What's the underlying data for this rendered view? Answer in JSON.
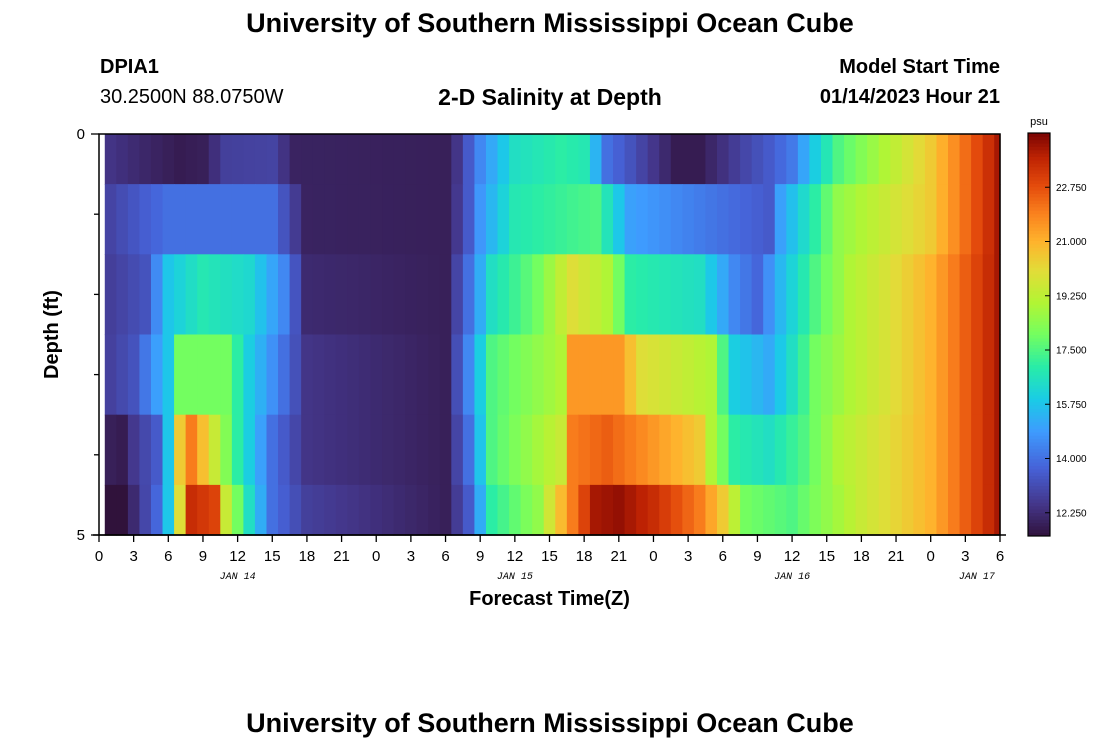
{
  "header": {
    "title": "University of Southern Mississippi Ocean Cube",
    "station_id": "DPIA1",
    "coords": "30.2500N  88.0750W",
    "plot_title": "2-D Salinity at Depth",
    "start_label": "Model Start Time",
    "start_value": "01/14/2023 Hour 21"
  },
  "footer": {
    "title": "University of Southern Mississippi Ocean Cube"
  },
  "chart_data": {
    "type": "heatmap",
    "title": "2-D Salinity at Depth",
    "xlabel": "Forecast Time(Z)",
    "ylabel": "Depth (ft)",
    "x_tick_labels": [
      "0",
      "3",
      "6",
      "9",
      "12",
      "15",
      "18",
      "21",
      "0",
      "3",
      "6",
      "9",
      "12",
      "15",
      "18",
      "21",
      "0",
      "3",
      "6",
      "9",
      "12",
      "15",
      "18",
      "21",
      "0",
      "3",
      "6"
    ],
    "y_tick_labels": [
      "0",
      "5"
    ],
    "y_range": [
      0,
      5
    ],
    "date_labels": [
      {
        "label": "JAN 14",
        "hour": 12
      },
      {
        "label": "JAN 15",
        "hour": 36
      },
      {
        "label": "JAN 16",
        "hour": 60
      },
      {
        "label": "JAN 17",
        "hour": 76
      }
    ],
    "x_range_hours": [
      0,
      78
    ],
    "x_start_hour": 0.5,
    "cell_hours": 1,
    "depth_rows_ft": [
      0.25,
      1.0,
      2.0,
      3.0,
      4.0,
      4.75
    ],
    "colorbar": {
      "unit": "psu",
      "min": 11.5,
      "max": 24.5,
      "ticks": [
        "12.250",
        "14.000",
        "15.750",
        "17.500",
        "19.250",
        "21.000",
        "22.750"
      ]
    },
    "salinity_keyframes": [
      [
        [
          0,
          12.6
        ],
        [
          4,
          12.1
        ],
        [
          7,
          11.8
        ],
        [
          9,
          11.9
        ],
        [
          11,
          12.8
        ],
        [
          15,
          12.9
        ],
        [
          17,
          12.0
        ],
        [
          30,
          11.9
        ],
        [
          31,
          12.5
        ],
        [
          33,
          14.5
        ],
        [
          36,
          16.5
        ],
        [
          40,
          17.0
        ],
        [
          42,
          16.8
        ],
        [
          44,
          14.0
        ],
        [
          46,
          13.3
        ],
        [
          50,
          11.8
        ],
        [
          52,
          11.8
        ],
        [
          56,
          13.0
        ],
        [
          58,
          13.5
        ],
        [
          60,
          14.2
        ],
        [
          62,
          16.0
        ],
        [
          64,
          17.5
        ],
        [
          68,
          19.0
        ],
        [
          72,
          20.5
        ],
        [
          78,
          24.0
        ]
      ],
      [
        [
          0,
          12.7
        ],
        [
          4,
          13.6
        ],
        [
          6,
          14.0
        ],
        [
          15,
          14.0
        ],
        [
          18,
          12.0
        ],
        [
          30,
          11.9
        ],
        [
          31,
          12.6
        ],
        [
          32,
          13.5
        ],
        [
          33,
          14.8
        ],
        [
          36,
          16.8
        ],
        [
          43,
          17.5
        ],
        [
          46,
          15.0
        ],
        [
          58,
          13.5
        ],
        [
          59,
          15.0
        ],
        [
          62,
          17.0
        ],
        [
          64,
          18.5
        ],
        [
          68,
          19.5
        ],
        [
          72,
          20.5
        ],
        [
          78,
          24.0
        ]
      ],
      [
        [
          0,
          12.6
        ],
        [
          4,
          13.3
        ],
        [
          6,
          15.8
        ],
        [
          9,
          16.8
        ],
        [
          13,
          16.3
        ],
        [
          16,
          14.5
        ],
        [
          18,
          12.2
        ],
        [
          30,
          11.9
        ],
        [
          32,
          14.0
        ],
        [
          34,
          16.5
        ],
        [
          38,
          18.0
        ],
        [
          41,
          20.0
        ],
        [
          44,
          19.0
        ],
        [
          46,
          17.0
        ],
        [
          52,
          16.5
        ],
        [
          55,
          14.5
        ],
        [
          57,
          13.8
        ],
        [
          59,
          15.5
        ],
        [
          62,
          17.5
        ],
        [
          65,
          19.0
        ],
        [
          68,
          19.8
        ],
        [
          72,
          21.0
        ],
        [
          78,
          24.0
        ]
      ],
      [
        [
          0,
          12.6
        ],
        [
          3,
          13.3
        ],
        [
          6,
          15.8
        ],
        [
          7,
          18.0
        ],
        [
          11,
          18.0
        ],
        [
          13,
          16.0
        ],
        [
          16,
          14.0
        ],
        [
          18,
          12.5
        ],
        [
          30,
          11.9
        ],
        [
          32,
          14.5
        ],
        [
          34,
          17.5
        ],
        [
          36,
          18.0
        ],
        [
          40,
          19.0
        ],
        [
          41,
          21.5
        ],
        [
          45,
          21.5
        ],
        [
          47,
          20.0
        ],
        [
          53,
          19.0
        ],
        [
          55,
          16.0
        ],
        [
          58,
          15.2
        ],
        [
          60,
          16.5
        ],
        [
          62,
          18.0
        ],
        [
          65,
          19.0
        ],
        [
          68,
          19.8
        ],
        [
          72,
          21.0
        ],
        [
          78,
          24.0
        ]
      ],
      [
        [
          0,
          12.6
        ],
        [
          1,
          11.9
        ],
        [
          2,
          11.8
        ],
        [
          3,
          12.6
        ],
        [
          5,
          13.5
        ],
        [
          6,
          15.8
        ],
        [
          7,
          20.5
        ],
        [
          8,
          22.0
        ],
        [
          10,
          19.5
        ],
        [
          12,
          17.0
        ],
        [
          15,
          14.0
        ],
        [
          18,
          12.5
        ],
        [
          30,
          11.9
        ],
        [
          32,
          14.0
        ],
        [
          34,
          17.5
        ],
        [
          37,
          18.5
        ],
        [
          40,
          19.5
        ],
        [
          41,
          22.0
        ],
        [
          44,
          22.5
        ],
        [
          48,
          21.5
        ],
        [
          52,
          20.5
        ],
        [
          53,
          19.0
        ],
        [
          55,
          17.0
        ],
        [
          58,
          16.5
        ],
        [
          61,
          17.5
        ],
        [
          64,
          19.0
        ],
        [
          68,
          20.0
        ],
        [
          72,
          21.0
        ],
        [
          78,
          24.0
        ]
      ],
      [
        [
          0,
          12.7
        ],
        [
          1,
          11.5
        ],
        [
          2,
          11.5
        ],
        [
          3,
          12.2
        ],
        [
          5,
          13.8
        ],
        [
          6,
          15.8
        ],
        [
          7,
          20.0
        ],
        [
          8,
          23.5
        ],
        [
          10,
          23.0
        ],
        [
          11,
          19.5
        ],
        [
          13,
          16.5
        ],
        [
          15,
          14.0
        ],
        [
          18,
          12.8
        ],
        [
          30,
          11.9
        ],
        [
          32,
          13.5
        ],
        [
          34,
          17.0
        ],
        [
          38,
          18.5
        ],
        [
          41,
          22.0
        ],
        [
          43,
          24.0
        ],
        [
          45,
          24.2
        ],
        [
          48,
          23.5
        ],
        [
          52,
          22.0
        ],
        [
          54,
          20.5
        ],
        [
          56,
          18.0
        ],
        [
          60,
          17.5
        ],
        [
          63,
          18.5
        ],
        [
          66,
          19.5
        ],
        [
          70,
          20.5
        ],
        [
          72,
          21.0
        ],
        [
          78,
          24.0
        ]
      ]
    ]
  }
}
